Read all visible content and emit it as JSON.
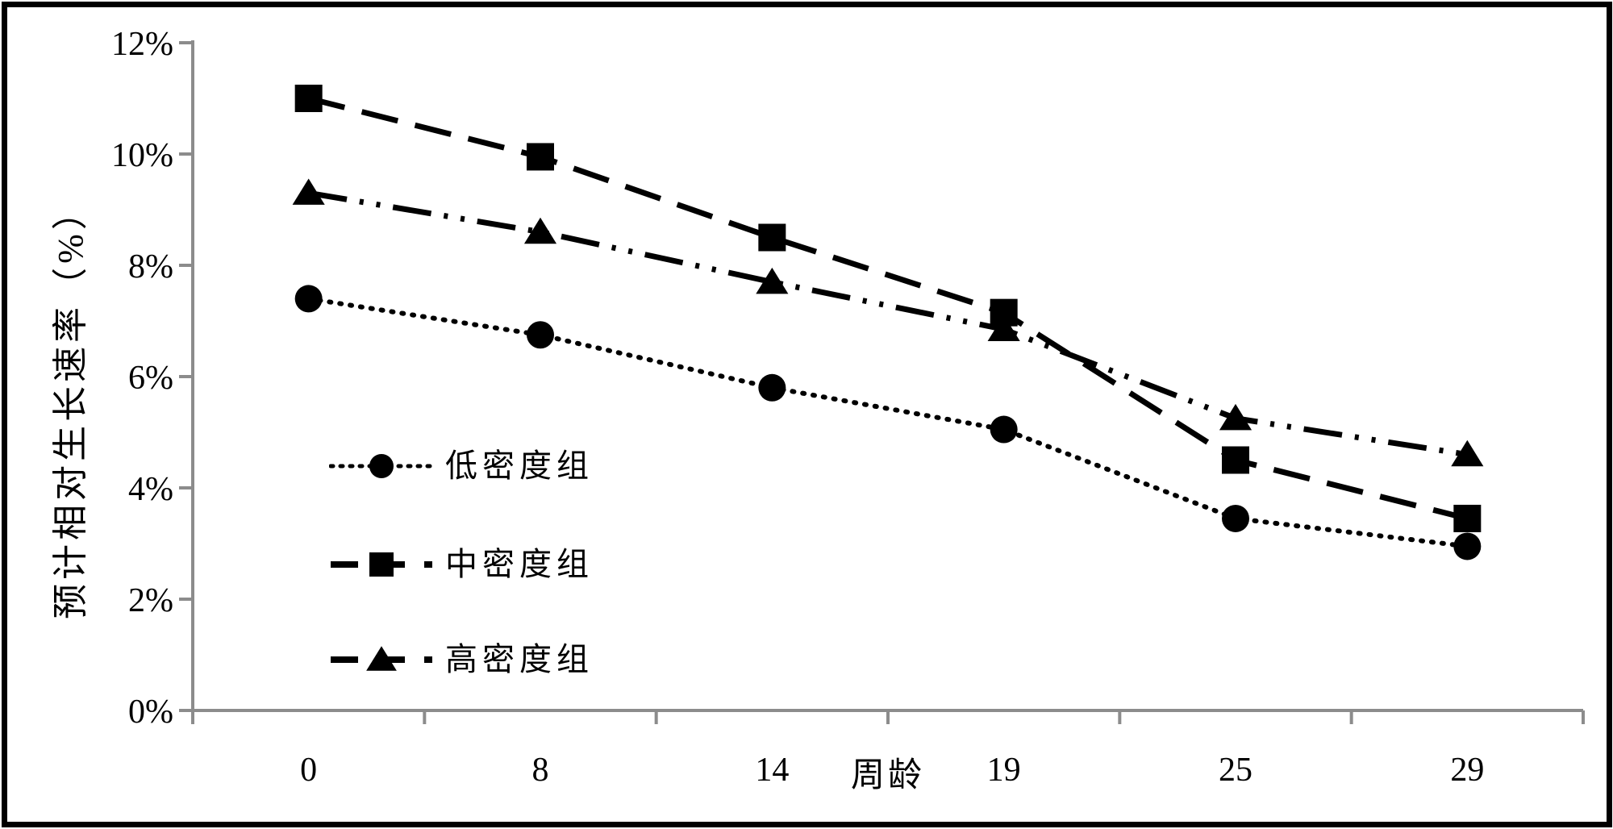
{
  "chart_data": {
    "type": "line",
    "title": "",
    "xlabel": "周龄",
    "ylabel": "预计相对生长速率（%）",
    "categories": [
      "0",
      "8",
      "14",
      "19",
      "25",
      "29"
    ],
    "series": [
      {
        "name": "低密度组",
        "marker": "circle",
        "line_style": "dotted",
        "values": [
          7.4,
          6.75,
          5.8,
          5.05,
          3.45,
          2.95
        ]
      },
      {
        "name": "中密度组",
        "marker": "square",
        "line_style": "dashed",
        "values": [
          11.0,
          9.95,
          8.5,
          7.15,
          4.5,
          3.45
        ]
      },
      {
        "name": "高密度组",
        "marker": "triangle",
        "line_style": "dash-dot-dot",
        "values": [
          9.3,
          8.6,
          7.7,
          6.85,
          5.25,
          4.6
        ]
      }
    ],
    "y_ticks": [
      0,
      2,
      4,
      6,
      8,
      10,
      12
    ],
    "y_tick_labels": [
      "0%",
      "2%",
      "4%",
      "6%",
      "8%",
      "10%",
      "12%"
    ],
    "ylim": [
      0,
      12
    ],
    "grid": false,
    "legend_position": "inside-left",
    "colors": {
      "series": "#000000",
      "axis": "#8c8c8c",
      "text": "#000000",
      "background": "#ffffff",
      "frame_border": "#000000"
    }
  }
}
